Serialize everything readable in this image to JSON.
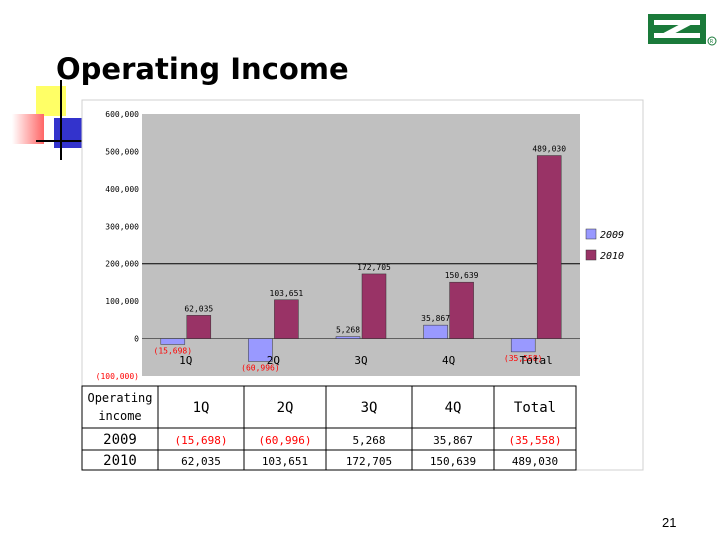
{
  "slide": {
    "title": "Operating Income",
    "page_number": "21"
  },
  "colors": {
    "series_2009": "#9999ff",
    "series_2010": "#993366",
    "plot_bg": "#c0c0c0",
    "logo": "#1a7a3a",
    "negative_text": "#ff0000"
  },
  "chart_data": {
    "type": "bar",
    "categories": [
      "1Q",
      "2Q",
      "3Q",
      "4Q",
      "Total"
    ],
    "series": [
      {
        "name": "2009",
        "values": [
          -15698,
          -60996,
          5268,
          35867,
          -35558
        ],
        "labels": [
          "(15,698)",
          "(60,996)",
          "5,268",
          "35,867",
          "(35,558)"
        ]
      },
      {
        "name": "2010",
        "values": [
          62035,
          103651,
          172705,
          150639,
          489030
        ],
        "labels": [
          "62,035",
          "103,651",
          "172,705",
          "150,639",
          "489,030"
        ]
      }
    ],
    "ylim": [
      -100000,
      600000
    ],
    "yticks": [
      -100000,
      0,
      100000,
      200000,
      300000,
      400000,
      500000,
      600000
    ],
    "ytick_labels": [
      "(100,000)",
      "0",
      "100,000",
      "200,000",
      "300,000",
      "400,000",
      "500,000",
      "600,000"
    ],
    "legend_position": "right",
    "grid": false
  },
  "table": {
    "header": [
      "Operating income",
      "1Q",
      "2Q",
      "3Q",
      "4Q",
      "Total"
    ],
    "rows": [
      [
        "2009",
        "(15,698)",
        "(60,996)",
        "5,268",
        "35,867",
        "(35,558)"
      ],
      [
        "2010",
        "62,035",
        "103,651",
        "172,705",
        "150,639",
        "489,030"
      ]
    ]
  }
}
